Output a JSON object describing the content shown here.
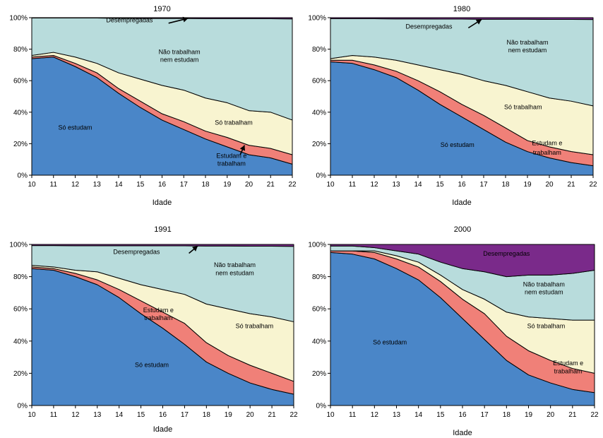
{
  "colors": {
    "so_estudam": "#4a86c8",
    "estudam_e_trabalham": "#f08078",
    "so_trabalham": "#f8f4d0",
    "nao_trabalham_nem_estudam": "#b8dcdc",
    "desempregadas": "#7a2a8a"
  },
  "chart_data": [
    {
      "type": "area",
      "stacked": true,
      "title": "1970",
      "xlabel": "Idade",
      "ylabel": "",
      "x": [
        10,
        11,
        12,
        13,
        14,
        15,
        16,
        17,
        18,
        19,
        20,
        21,
        22
      ],
      "y_ticks": [
        "0%",
        "20%",
        "40%",
        "60%",
        "80%",
        "100%"
      ],
      "ylim": [
        0,
        100
      ],
      "series": [
        {
          "name": "Só estudam",
          "values": [
            74,
            75,
            69,
            62,
            52,
            43,
            35,
            29,
            23,
            18,
            13,
            11,
            7
          ]
        },
        {
          "name": "Estudam e trabalham",
          "values": [
            1,
            1,
            2,
            3,
            3,
            4,
            4,
            5,
            5,
            6,
            6,
            6,
            6
          ]
        },
        {
          "name": "Só trabalham",
          "values": [
            1,
            2,
            4,
            6,
            10,
            14,
            18,
            20,
            21,
            22,
            22,
            23,
            22
          ]
        },
        {
          "name": "Não trabalham nem estudam",
          "values": [
            23.8,
            21.8,
            24.8,
            28.8,
            34.6,
            38.5,
            42.5,
            45.5,
            50.4,
            53.4,
            58.4,
            59.3,
            64.2
          ]
        },
        {
          "name": "Desempregadas",
          "values": [
            0.2,
            0.2,
            0.2,
            0.2,
            0.4,
            0.5,
            0.5,
            0.5,
            0.6,
            0.6,
            0.6,
            0.7,
            0.8
          ]
        }
      ],
      "annotations": [
        {
          "text": "Desempregadas",
          "x": 14.5,
          "y": 97
        },
        {
          "text": "Não trabalham",
          "x": 16.8,
          "y": 77
        },
        {
          "text": "nem estudam",
          "x": 16.8,
          "y": 72
        },
        {
          "text": "Só trabalham",
          "x": 19.3,
          "y": 32
        },
        {
          "text": "Só estudam",
          "x": 12,
          "y": 29
        },
        {
          "text": "Estudam e",
          "x": 19.2,
          "y": 11
        },
        {
          "text": "trabalham",
          "x": 19.2,
          "y": 6
        }
      ],
      "arrows": [
        {
          "from": [
            16.3,
            96.5
          ],
          "to": [
            17.2,
            99.6
          ]
        },
        {
          "from": [
            19.6,
            13
          ],
          "to": [
            19.8,
            19
          ]
        }
      ]
    },
    {
      "type": "area",
      "stacked": true,
      "title": "1980",
      "xlabel": "Idade",
      "ylabel": "",
      "x": [
        10,
        11,
        12,
        13,
        14,
        15,
        16,
        17,
        18,
        19,
        20,
        21,
        22
      ],
      "y_ticks": [
        "0%",
        "20%",
        "40%",
        "60%",
        "80%",
        "100%"
      ],
      "ylim": [
        0,
        100
      ],
      "series": [
        {
          "name": "Só estudam",
          "values": [
            72,
            71,
            67,
            62,
            54,
            45,
            37,
            29,
            21,
            15,
            11,
            8,
            6
          ]
        },
        {
          "name": "Estudam e trabalham",
          "values": [
            1,
            2,
            3,
            4,
            6,
            8,
            8,
            9,
            9,
            7,
            7,
            7,
            7
          ]
        },
        {
          "name": "Só trabalham",
          "values": [
            1,
            3,
            5,
            7,
            10,
            14,
            19,
            22,
            27,
            31,
            31,
            32,
            31
          ]
        },
        {
          "name": "Não trabalham nem estudam",
          "values": [
            25.3,
            23.3,
            24.3,
            26.2,
            29.2,
            32.1,
            35.1,
            39,
            42,
            46,
            49.9,
            51.9,
            54.8
          ]
        },
        {
          "name": "Desempregadas",
          "values": [
            0.7,
            0.7,
            0.7,
            0.8,
            0.8,
            0.9,
            0.9,
            1,
            1,
            1,
            1.1,
            1.1,
            1.2
          ]
        }
      ],
      "annotations": [
        {
          "text": "Desempregadas",
          "x": 14.5,
          "y": 93
        },
        {
          "text": "Não trabalham",
          "x": 19,
          "y": 83
        },
        {
          "text": "nem estudam",
          "x": 19,
          "y": 78
        },
        {
          "text": "Só trabalham",
          "x": 18.8,
          "y": 42
        },
        {
          "text": "Só estudam",
          "x": 15.8,
          "y": 18
        },
        {
          "text": "Estudam e",
          "x": 19.9,
          "y": 19
        },
        {
          "text": "trabalham",
          "x": 19.9,
          "y": 13
        }
      ],
      "arrows": [
        {
          "from": [
            16.3,
            93.5
          ],
          "to": [
            16.9,
            98.8
          ]
        }
      ]
    },
    {
      "type": "area",
      "stacked": true,
      "title": "1991",
      "xlabel": "Idade",
      "ylabel": "",
      "x": [
        10,
        11,
        12,
        13,
        14,
        15,
        16,
        17,
        18,
        19,
        20,
        21,
        22
      ],
      "y_ticks": [
        "0%",
        "20%",
        "40%",
        "60%",
        "80%",
        "100%"
      ],
      "ylim": [
        0,
        100
      ],
      "series": [
        {
          "name": "Só estudam",
          "values": [
            85,
            84,
            80,
            75,
            67,
            57,
            48,
            38,
            27,
            20,
            14,
            10,
            7
          ]
        },
        {
          "name": "Estudam e trabalham",
          "values": [
            1,
            1,
            2,
            3,
            5,
            8,
            10,
            13,
            12,
            11,
            11,
            10,
            8
          ]
        },
        {
          "name": "Só trabalham",
          "values": [
            1,
            1,
            2,
            5,
            7,
            10,
            14,
            18,
            24,
            29,
            32,
            35,
            37
          ]
        },
        {
          "name": "Não trabalham nem estudam",
          "values": [
            12.3,
            13.3,
            15.2,
            16.2,
            20.2,
            24.2,
            27.1,
            30.1,
            36,
            39,
            41.9,
            43.9,
            46.8
          ]
        },
        {
          "name": "Desempregadas",
          "values": [
            0.7,
            0.7,
            0.8,
            0.8,
            0.8,
            0.8,
            0.9,
            0.9,
            1,
            1,
            1.1,
            1.1,
            1.2
          ]
        }
      ],
      "annotations": [
        {
          "text": "Desempregadas",
          "x": 14.8,
          "y": 94
        },
        {
          "text": "Não trabalham",
          "x": 19.3,
          "y": 86
        },
        {
          "text": "nem estudam",
          "x": 19.3,
          "y": 81
        },
        {
          "text": "Estudam e",
          "x": 15.8,
          "y": 58
        },
        {
          "text": "trabalham",
          "x": 15.8,
          "y": 53
        },
        {
          "text": "Só trabalham",
          "x": 20.2,
          "y": 48
        },
        {
          "text": "Só estudam",
          "x": 15.5,
          "y": 24
        }
      ],
      "arrows": [
        {
          "from": [
            17.2,
            94.5
          ],
          "to": [
            17.6,
            99
          ]
        }
      ]
    },
    {
      "type": "area",
      "stacked": true,
      "title": "2000",
      "xlabel": "Idade",
      "ylabel": "",
      "x": [
        10,
        11,
        12,
        13,
        14,
        15,
        16,
        17,
        18,
        19,
        20,
        21,
        22
      ],
      "y_ticks": [
        "0%",
        "20%",
        "40%",
        "60%",
        "80%",
        "100%"
      ],
      "ylim": [
        0,
        100
      ],
      "series": [
        {
          "name": "Só estudam",
          "values": [
            95,
            94,
            91,
            85,
            78,
            67,
            54,
            41,
            28,
            19,
            14,
            10,
            8
          ]
        },
        {
          "name": "Estudam e trabalham",
          "values": [
            1,
            2,
            4,
            6,
            8,
            10,
            12,
            16,
            15,
            15,
            14,
            13,
            12
          ]
        },
        {
          "name": "Só trabalham",
          "values": [
            0,
            0,
            1,
            2,
            3,
            4,
            6,
            9,
            15,
            21,
            26,
            30,
            33
          ]
        },
        {
          "name": "Não trabalham nem estudam",
          "values": [
            3,
            3,
            2,
            3,
            5,
            8,
            13,
            17,
            22,
            26,
            27,
            29,
            31
          ]
        },
        {
          "name": "Desempregadas",
          "values": [
            1,
            1,
            2,
            4,
            6,
            11,
            15,
            17,
            20,
            19,
            19,
            18,
            16
          ]
        }
      ],
      "annotations": [
        {
          "text": "Desempregadas",
          "x": 18,
          "y": 93
        },
        {
          "text": "Não trabalham",
          "x": 19.7,
          "y": 74
        },
        {
          "text": "nem estudam",
          "x": 19.7,
          "y": 69
        },
        {
          "text": "Só trabalham",
          "x": 19.8,
          "y": 48
        },
        {
          "text": "Só estudam",
          "x": 12.7,
          "y": 38
        },
        {
          "text": "Estudam e",
          "x": 20.8,
          "y": 25
        },
        {
          "text": "trabalham",
          "x": 20.8,
          "y": 20
        }
      ],
      "arrows": []
    }
  ]
}
